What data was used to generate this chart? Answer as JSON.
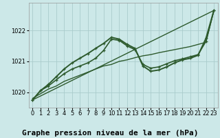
{
  "bg_color": "#cce8e8",
  "grid_color": "#aacccc",
  "line_color": "#2d5a2d",
  "title": "Graphe pression niveau de la mer (hPa)",
  "xlim": [
    -0.5,
    23.5
  ],
  "ylim": [
    1019.5,
    1022.9
  ],
  "yticks": [
    1020,
    1021,
    1022
  ],
  "xticks": [
    0,
    1,
    2,
    3,
    4,
    5,
    6,
    7,
    8,
    9,
    10,
    11,
    12,
    13,
    14,
    15,
    16,
    17,
    18,
    19,
    20,
    21,
    22,
    23
  ],
  "series": [
    {
      "x": [
        0,
        23
      ],
      "y": [
        1019.75,
        1022.65
      ],
      "marker": false,
      "linewidth": 1.0
    },
    {
      "x": [
        0,
        1,
        2,
        3,
        4,
        5,
        6,
        7,
        8,
        9,
        10,
        11,
        12,
        13,
        14,
        15,
        16,
        17,
        18,
        19,
        20,
        21,
        22,
        23
      ],
      "y": [
        1019.8,
        1019.95,
        1020.1,
        1020.2,
        1020.35,
        1020.45,
        1020.55,
        1020.65,
        1020.75,
        1020.85,
        1020.9,
        1021.0,
        1021.05,
        1021.12,
        1021.18,
        1021.22,
        1021.28,
        1021.33,
        1021.38,
        1021.43,
        1021.48,
        1021.55,
        1021.62,
        1022.65
      ],
      "marker": false,
      "linewidth": 1.0
    },
    {
      "x": [
        0,
        1,
        2,
        3,
        4,
        5,
        6,
        7,
        8,
        9,
        10,
        11,
        12,
        13,
        14,
        15,
        16,
        17,
        18,
        19,
        20,
        21,
        22,
        23
      ],
      "y": [
        1019.75,
        1020.05,
        1020.2,
        1020.4,
        1020.6,
        1020.75,
        1020.85,
        1020.95,
        1021.1,
        1021.35,
        1021.72,
        1021.68,
        1021.5,
        1021.38,
        1020.9,
        1020.78,
        1020.82,
        1020.92,
        1021.02,
        1021.08,
        1021.15,
        1021.22,
        1021.65,
        1022.65
      ],
      "marker": true,
      "linewidth": 1.2
    },
    {
      "x": [
        0,
        1,
        2,
        3,
        4,
        5,
        6,
        7,
        8,
        9,
        10,
        11,
        12,
        13,
        14,
        15,
        16,
        17,
        18,
        19,
        20,
        21,
        22,
        23
      ],
      "y": [
        1019.75,
        1020.05,
        1020.25,
        1020.5,
        1020.75,
        1020.95,
        1021.1,
        1021.25,
        1021.42,
        1021.58,
        1021.78,
        1021.72,
        1021.55,
        1021.42,
        1020.85,
        1020.68,
        1020.72,
        1020.82,
        1020.95,
        1021.05,
        1021.1,
        1021.2,
        1021.75,
        1022.65
      ],
      "marker": true,
      "linewidth": 1.4
    }
  ],
  "title_fontsize": 8,
  "tick_fontsize": 6,
  "title_fontfamily": "monospace",
  "title_fontweight": "bold"
}
